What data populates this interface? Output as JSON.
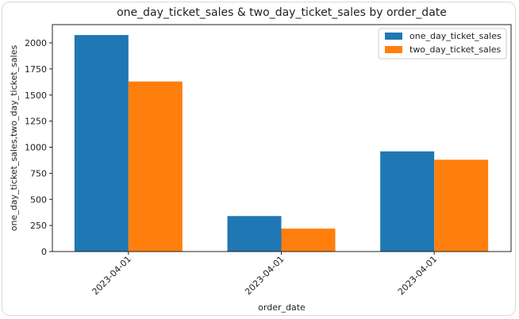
{
  "chart_data": {
    "type": "bar",
    "title": "one_day_ticket_sales & two_day_ticket_sales by order_date",
    "xlabel": "order_date",
    "ylabel": "one_day_ticket_sales,two_day_ticket_sales",
    "categories": [
      "2023-04-01",
      "2023-04-01",
      "2023-04-01"
    ],
    "series": [
      {
        "name": "one_day_ticket_sales",
        "color": "#1f77b4",
        "values": [
          2075,
          340,
          960
        ]
      },
      {
        "name": "two_day_ticket_sales",
        "color": "#ff7f0e",
        "values": [
          1630,
          220,
          880
        ]
      }
    ],
    "ylim": [
      0,
      2175
    ],
    "yticks": [
      0,
      250,
      500,
      750,
      1000,
      1250,
      1500,
      1750,
      2000
    ],
    "legend": "top-right",
    "grid": false
  }
}
